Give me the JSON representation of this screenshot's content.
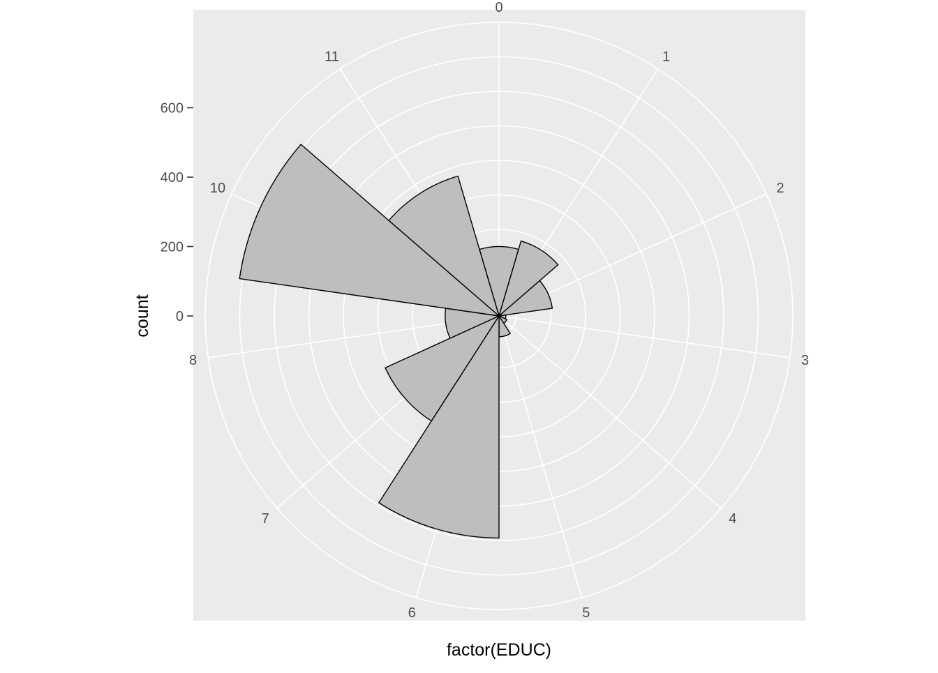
{
  "chart_data": {
    "type": "bar",
    "coord": "polar",
    "xlabel": "factor(EDUC)",
    "ylabel": "count",
    "categories": [
      "0",
      "1",
      "2",
      "3",
      "4",
      "5",
      "6",
      "7",
      "8",
      "10",
      "11"
    ],
    "values": [
      200,
      225,
      155,
      20,
      25,
      60,
      640,
      360,
      155,
      755,
      420
    ],
    "y_ticks": [
      0,
      200,
      400,
      600
    ],
    "ylim": [
      0,
      720
    ],
    "colors": {
      "panel": "#ebebeb",
      "grid": "#ffffff",
      "bar_fill": "#bebebe",
      "bar_outline": "#000000"
    }
  }
}
